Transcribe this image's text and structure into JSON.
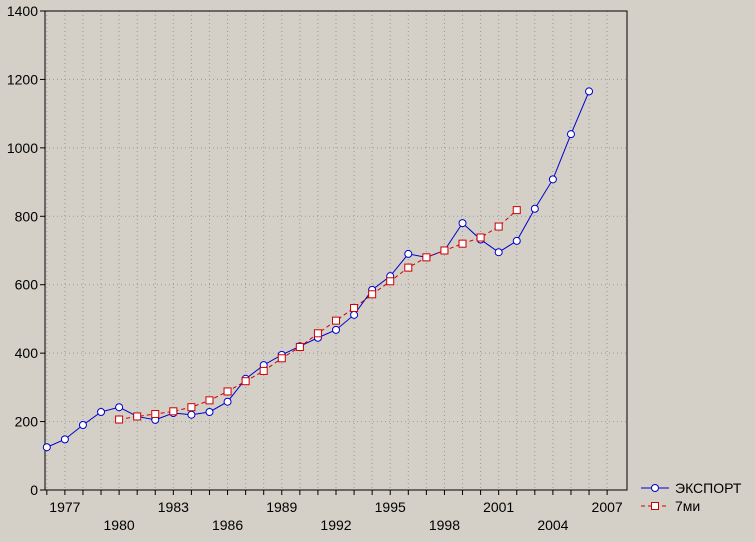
{
  "chart_data": {
    "type": "line",
    "title": "",
    "xlabel": "",
    "ylabel": "",
    "xlim": [
      1975.9,
      2008.1
    ],
    "ylim": [
      0,
      1400
    ],
    "yticks": [
      0,
      200,
      400,
      600,
      800,
      1000,
      1200,
      1400
    ],
    "xticks_upper": [
      1977,
      1983,
      1989,
      1995,
      2001,
      2007
    ],
    "xticks_lower": [
      1980,
      1986,
      1992,
      1998,
      2004
    ],
    "grid": true,
    "legend_position": "bottom-right",
    "series": [
      {
        "name": "ЭКСПОРТ",
        "color": "#0000cc",
        "marker": "circle",
        "line": "solid",
        "x": [
          1976,
          1977,
          1978,
          1979,
          1980,
          1981,
          1982,
          1983,
          1984,
          1985,
          1986,
          1987,
          1988,
          1989,
          1990,
          1991,
          1992,
          1993,
          1994,
          1995,
          1996,
          1997,
          1998,
          1999,
          2000,
          2001,
          2002,
          2003,
          2004,
          2005,
          2006
        ],
        "y": [
          125,
          148,
          190,
          228,
          242,
          215,
          205,
          225,
          220,
          228,
          258,
          325,
          365,
          395,
          420,
          445,
          468,
          512,
          585,
          625,
          690,
          680,
          700,
          780,
          732,
          695,
          728,
          822,
          908,
          1040,
          1165
        ]
      },
      {
        "name": "7ми",
        "color": "#cc0000",
        "marker": "square",
        "line": "dashed",
        "x": [
          1980,
          1981,
          1982,
          1983,
          1984,
          1985,
          1986,
          1987,
          1988,
          1989,
          1990,
          1991,
          1992,
          1993,
          1994,
          1995,
          1996,
          1997,
          1998,
          1999,
          2000,
          2001,
          2002
        ],
        "y": [
          206,
          215,
          222,
          230,
          242,
          262,
          288,
          318,
          348,
          385,
          418,
          458,
          495,
          532,
          572,
          610,
          650,
          680,
          700,
          720,
          738,
          770,
          818
        ]
      }
    ]
  }
}
